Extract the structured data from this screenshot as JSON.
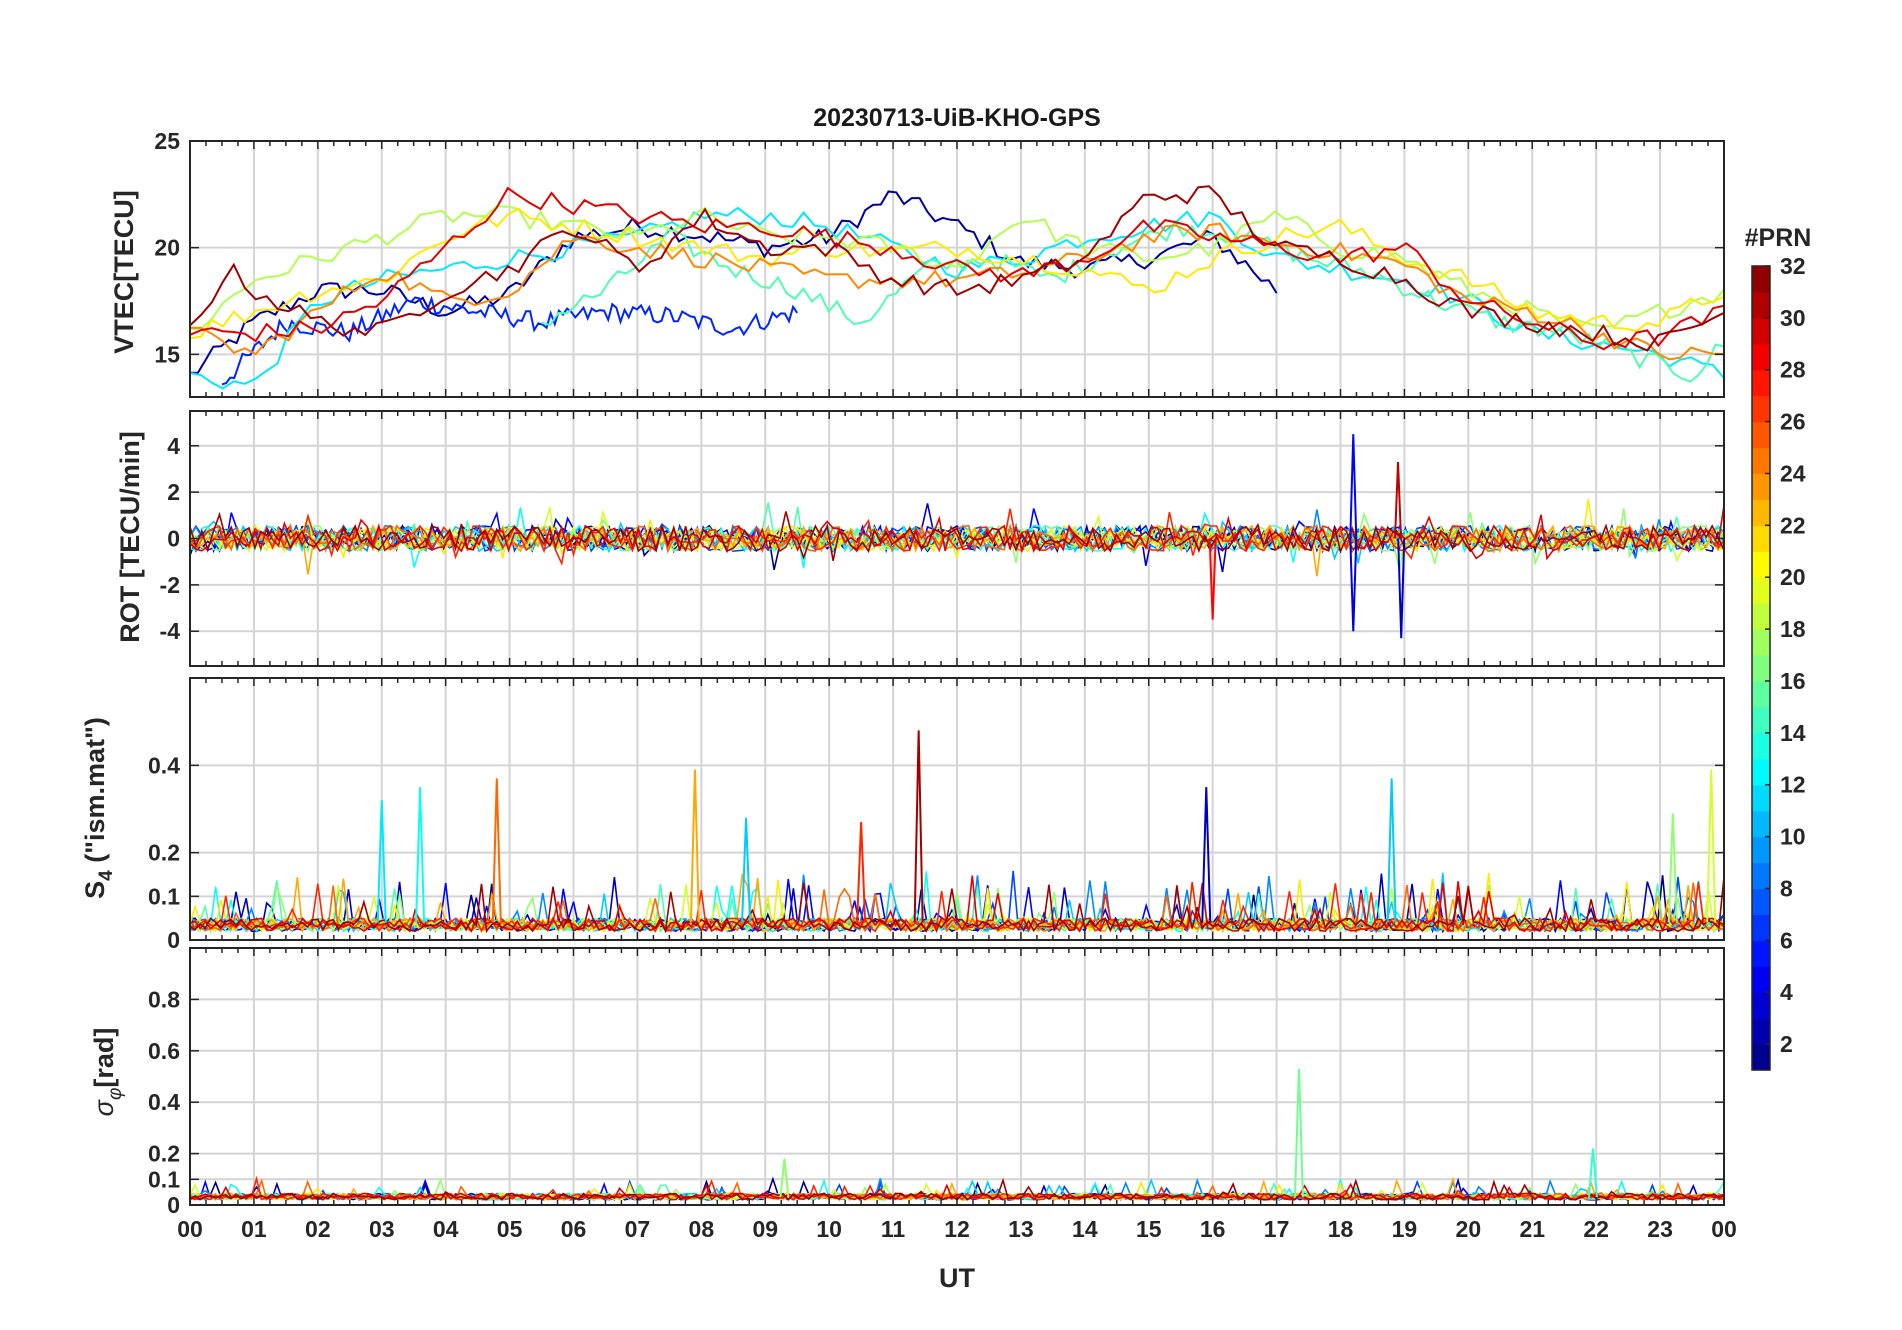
{
  "chart_data": {
    "type": "line",
    "title": "20230713-UiB-KHO-GPS",
    "xlabel": "UT",
    "x_ticks": [
      "00",
      "01",
      "02",
      "03",
      "04",
      "05",
      "06",
      "07",
      "08",
      "09",
      "10",
      "11",
      "12",
      "13",
      "14",
      "15",
      "16",
      "17",
      "18",
      "19",
      "20",
      "21",
      "22",
      "23",
      "00"
    ],
    "xlim_hours": [
      0,
      24
    ],
    "colorbar": {
      "title": "#PRN",
      "range": [
        1,
        32
      ],
      "ticks": [
        2,
        4,
        6,
        8,
        10,
        12,
        14,
        16,
        18,
        20,
        22,
        24,
        26,
        28,
        30,
        32
      ],
      "colormap": "jet"
    },
    "panels": [
      {
        "id": "vtec",
        "ylabel": "VTEC[TECU]",
        "ylim": [
          13,
          25
        ],
        "y_ticks": [
          15,
          20,
          25
        ],
        "series": [
          {
            "prn": 2,
            "x": [
              0,
              1,
              2,
              3,
              4,
              5,
              6,
              7,
              8,
              9,
              10,
              11,
              12,
              13,
              14,
              15,
              16,
              17
            ],
            "y": [
              14,
              16.5,
              18,
              18,
              17,
              17.8,
              20.5,
              21,
              20.6,
              20,
              20.5,
              22.5,
              21,
              19.3,
              19,
              19.5,
              20.5,
              18
            ]
          },
          {
            "prn": 6,
            "x": [
              0.5,
              1.5,
              2.5,
              3.5,
              4.5,
              5.5,
              6.5,
              7.5,
              8.5,
              9.5
            ],
            "y": [
              13.7,
              16.5,
              16,
              17.5,
              17,
              16.5,
              17,
              16.8,
              16.2,
              17
            ]
          },
          {
            "prn": 12,
            "x": [
              0,
              1,
              2,
              3,
              4,
              5,
              6,
              7,
              8,
              9,
              10,
              11,
              12,
              13,
              14,
              15,
              16,
              17,
              18,
              19,
              20,
              21,
              22,
              23,
              24
            ],
            "y": [
              14,
              13.5,
              17.5,
              18.5,
              19,
              19.5,
              20,
              20.5,
              21.5,
              21.5,
              21,
              20,
              19,
              19.5,
              20.5,
              21,
              21.5,
              19.5,
              19,
              18.5,
              17.5,
              16,
              15.5,
              15,
              14
            ]
          },
          {
            "prn": 15,
            "x": [
              5.5,
              6.5,
              7.5,
              8.5,
              9.5,
              10.5,
              11.5,
              12.5,
              13.5,
              14.5,
              15.5,
              16.5,
              17.5,
              18.5,
              19.5,
              20.5,
              21.5,
              22.5,
              23.5,
              24
            ],
            "y": [
              16.5,
              18,
              20.5,
              19,
              18,
              16.5,
              19,
              19.5,
              18.5,
              20,
              21,
              20.5,
              19.5,
              18.8,
              17.5,
              16.5,
              16,
              15,
              14,
              15.5
            ]
          },
          {
            "prn": 18,
            "x": [
              0,
              1,
              2,
              3,
              4,
              5,
              6,
              7,
              8,
              9,
              10,
              11,
              12,
              13,
              14,
              15,
              16,
              17,
              18,
              19,
              20,
              21,
              22,
              23,
              24
            ],
            "y": [
              16,
              18.5,
              19.5,
              20.5,
              21.5,
              21.5,
              21,
              20.5,
              21.5,
              20.5,
              20.5,
              20,
              19,
              21.5,
              20,
              19.5,
              20,
              21.5,
              20,
              19.5,
              18,
              17,
              16,
              17,
              18
            ]
          },
          {
            "prn": 21,
            "x": [
              0,
              1,
              2,
              3,
              4,
              5,
              6,
              7,
              8,
              9,
              10,
              11,
              12,
              13,
              14,
              15,
              16,
              17,
              18,
              19,
              20,
              21,
              22,
              23,
              24
            ],
            "y": [
              16,
              17,
              18,
              18.5,
              20.5,
              21.5,
              21,
              20.5,
              20,
              19.5,
              20,
              19.8,
              20,
              19.5,
              19,
              18,
              19.5,
              20.5,
              21,
              19.5,
              18.5,
              17,
              16.5,
              16.5,
              18
            ]
          },
          {
            "prn": 24,
            "x": [
              0,
              1,
              2,
              3,
              4,
              5,
              6,
              7,
              8,
              9,
              10,
              11,
              12,
              13,
              14,
              15,
              16,
              17,
              18,
              19,
              20,
              21,
              22,
              23,
              24
            ],
            "y": [
              16,
              15,
              17,
              19,
              17.5,
              18,
              20.5,
              20,
              19.5,
              19,
              18.5,
              18.5,
              18.5,
              18.8,
              19.5,
              20.5,
              20.8,
              20.2,
              19.8,
              19.2,
              17.5,
              17,
              16,
              15,
              15
            ]
          },
          {
            "prn": 29,
            "x": [
              0,
              1,
              2,
              3,
              4,
              5,
              6,
              7,
              8,
              9,
              10,
              11,
              12,
              13,
              14,
              15,
              16,
              17,
              18,
              19,
              20,
              21,
              22,
              23,
              24
            ],
            "y": [
              16,
              16,
              16.2,
              17.5,
              20,
              22.5,
              22,
              21.5,
              21,
              21,
              20.5,
              20,
              19,
              18.7,
              19.5,
              21,
              20.5,
              20,
              19.5,
              20,
              17.5,
              16.5,
              15.5,
              15.8,
              17
            ]
          },
          {
            "prn": 31,
            "x": [
              0,
              0.6,
              1,
              2,
              3,
              4,
              5,
              6,
              7,
              8,
              9,
              10,
              11,
              12,
              13,
              14,
              15,
              16,
              17,
              18,
              19,
              20,
              21,
              22,
              23,
              24
            ],
            "y": [
              16.2,
              19,
              18,
              16.5,
              16,
              18,
              19,
              21,
              19,
              21.5,
              20,
              20,
              18.5,
              18,
              18.5,
              19.5,
              22.5,
              22.5,
              20,
              19.5,
              18.5,
              17,
              16.5,
              16,
              15.5,
              17
            ]
          }
        ]
      },
      {
        "id": "rot",
        "ylabel": "ROT [TECU/min]",
        "ylim": [
          -5.5,
          5.5
        ],
        "y_ticks": [
          -4,
          -2,
          0,
          2,
          4
        ],
        "annotations": [
          {
            "prn": 5,
            "x": 18.2,
            "y": 4.5
          },
          {
            "prn": 4,
            "x": 18.2,
            "y": -4
          },
          {
            "prn": 3,
            "x": 18.95,
            "y": -4.3
          },
          {
            "prn": 28,
            "x": 16.0,
            "y": -3.5
          },
          {
            "prn": 30,
            "x": 18.9,
            "y": 3.3
          }
        ]
      },
      {
        "id": "s4",
        "ylabel": "S4 (\"ism.mat\")",
        "ylabel_main": "S",
        "ylabel_sub": "4",
        "ylabel_rest": " (\"ism.mat\")",
        "ylim": [
          0,
          0.6
        ],
        "y_ticks": [
          0,
          0.1,
          0.2,
          0.4
        ],
        "spikes": [
          {
            "prn": 12,
            "x": 3.0,
            "y": 0.32
          },
          {
            "prn": 13,
            "x": 3.6,
            "y": 0.35
          },
          {
            "prn": 25,
            "x": 4.8,
            "y": 0.37
          },
          {
            "prn": 23,
            "x": 7.9,
            "y": 0.39
          },
          {
            "prn": 11,
            "x": 8.7,
            "y": 0.28
          },
          {
            "prn": 27,
            "x": 10.5,
            "y": 0.27
          },
          {
            "prn": 31,
            "x": 11.4,
            "y": 0.48
          },
          {
            "prn": 3,
            "x": 15.9,
            "y": 0.35
          },
          {
            "prn": 11,
            "x": 18.8,
            "y": 0.37
          },
          {
            "prn": 19,
            "x": 23.8,
            "y": 0.39
          },
          {
            "prn": 17,
            "x": 23.2,
            "y": 0.29
          }
        ]
      },
      {
        "id": "sigma",
        "ylabel": "σφ[rad]",
        "ylabel_main": "σ",
        "ylabel_sub": "φ",
        "ylabel_rest": "[rad]",
        "ylim": [
          0,
          1.0
        ],
        "y_ticks": [
          0,
          0.1,
          0.2,
          0.4,
          0.6,
          0.8
        ],
        "spikes": [
          {
            "prn": 16,
            "x": 17.35,
            "y": 0.53
          },
          {
            "prn": 14,
            "x": 21.95,
            "y": 0.22
          },
          {
            "prn": 17,
            "x": 9.3,
            "y": 0.18
          }
        ]
      }
    ]
  }
}
